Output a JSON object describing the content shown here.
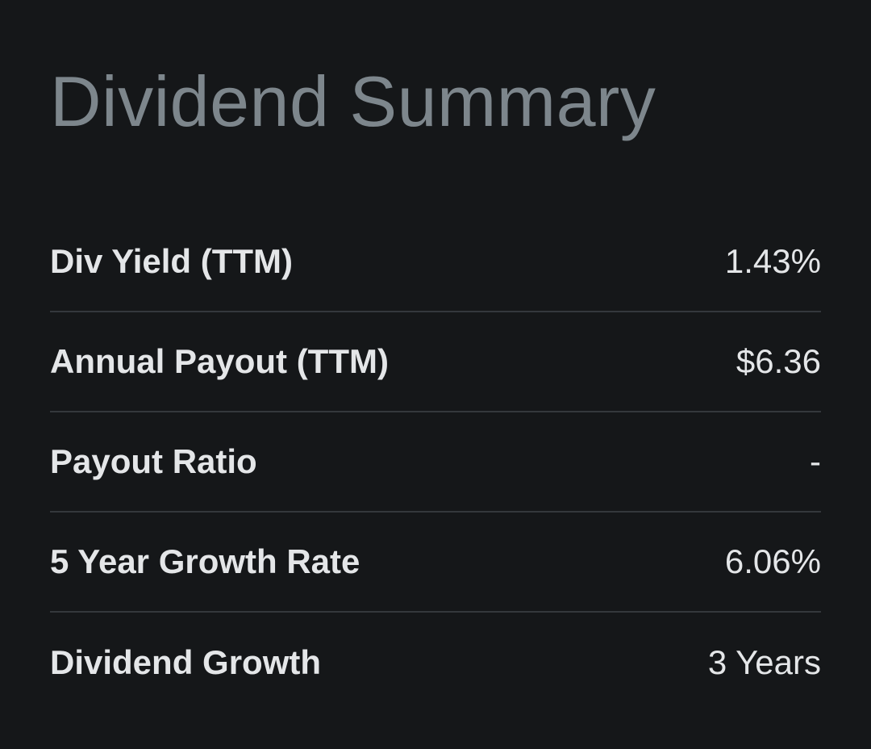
{
  "summary": {
    "title": "Dividend Summary",
    "rows": [
      {
        "label": "Div Yield (TTM)",
        "value": "1.43%"
      },
      {
        "label": "Annual Payout (TTM)",
        "value": "$6.36"
      },
      {
        "label": "Payout Ratio",
        "value": "-"
      },
      {
        "label": "5 Year Growth Rate",
        "value": "6.06%"
      },
      {
        "label": "Dividend Growth",
        "value": "3 Years"
      }
    ]
  }
}
